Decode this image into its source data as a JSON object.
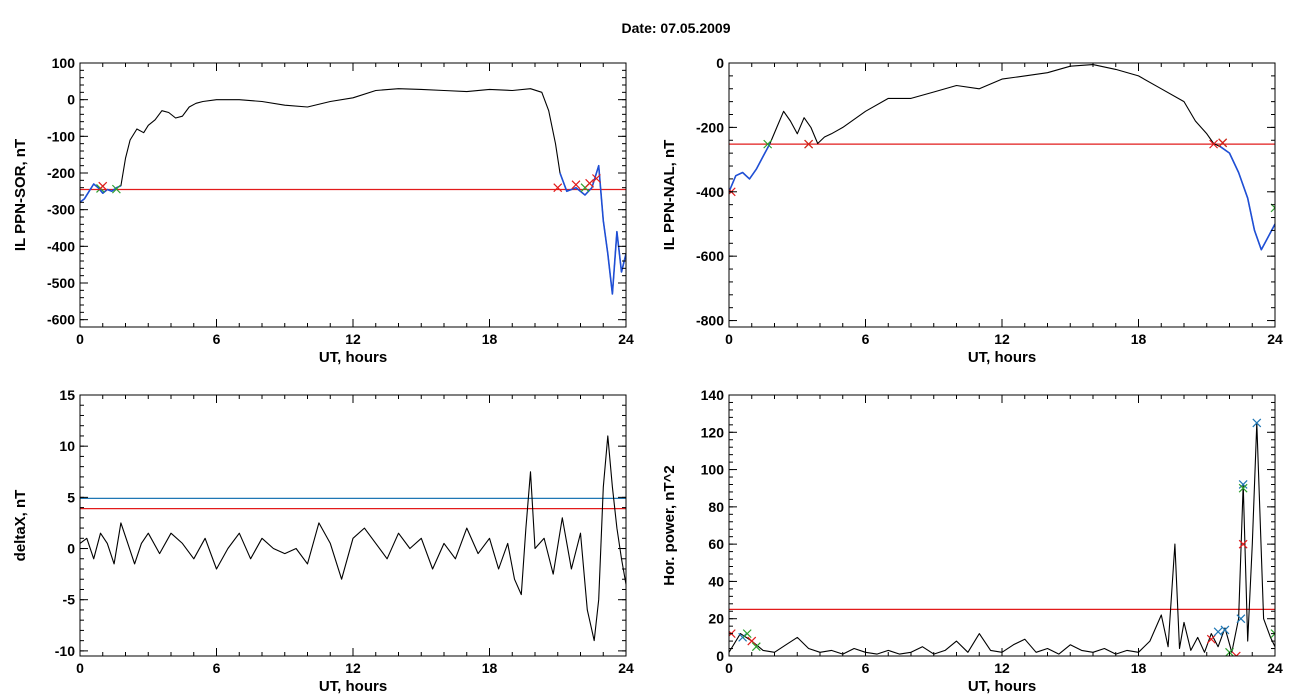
{
  "figure": {
    "title": "Date:  07.05.2009"
  },
  "chart_data": [
    {
      "id": "sor",
      "type": "line",
      "xlabel": "UT, hours",
      "ylabel": "IL PPN-SOR, nT",
      "xlim": [
        0,
        24
      ],
      "ylim": [
        -620,
        100
      ],
      "xticks": [
        0,
        6,
        12,
        18,
        24
      ],
      "yticks": [
        100,
        0,
        -100,
        -200,
        -300,
        -400,
        -500,
        -600
      ],
      "grid": false,
      "series": [
        {
          "color": "#000000",
          "x": [
            0,
            0.2,
            0.4,
            0.6,
            0.8,
            1.0,
            1.2,
            1.4,
            1.6,
            1.8,
            2.0,
            2.2,
            2.5,
            2.8,
            3.0,
            3.3,
            3.6,
            3.9,
            4.2,
            4.5,
            4.8,
            5.1,
            5.4,
            6,
            7,
            8,
            9,
            10,
            11,
            12,
            13,
            14,
            15,
            16,
            17,
            18,
            19,
            19.8,
            20.3,
            20.6,
            20.9,
            21.1,
            21.4,
            21.8,
            22.2,
            22.5,
            22.8,
            23.0,
            23.2,
            23.4,
            23.6,
            23.8,
            24.0
          ],
          "y": [
            -280,
            -270,
            -250,
            -230,
            -240,
            -255,
            -245,
            -250,
            -240,
            -235,
            -160,
            -110,
            -80,
            -90,
            -70,
            -55,
            -30,
            -35,
            -50,
            -45,
            -20,
            -10,
            -5,
            0,
            0,
            -5,
            -15,
            -20,
            -5,
            5,
            25,
            30,
            28,
            25,
            22,
            28,
            25,
            30,
            20,
            -30,
            -120,
            -200,
            -250,
            -240,
            -260,
            -240,
            -180,
            -330,
            -420,
            -530,
            -360,
            -470,
            -420
          ]
        },
        {
          "color": "#1f4fd6",
          "x": [
            0,
            0.2,
            0.4,
            0.6,
            0.8,
            1.0,
            1.2,
            1.4,
            1.6,
            1.8
          ],
          "y": [
            -280,
            -270,
            -250,
            -230,
            -240,
            -255,
            -245,
            -250,
            -240,
            -235
          ]
        },
        {
          "color": "#1f4fd6",
          "x": [
            21.1,
            21.4,
            21.8,
            22.2,
            22.5,
            22.8,
            23.0,
            23.2,
            23.4,
            23.6,
            23.8,
            24.0
          ],
          "y": [
            -200,
            -250,
            -240,
            -260,
            -240,
            -180,
            -330,
            -420,
            -530,
            -360,
            -470,
            -420
          ]
        }
      ],
      "hlines": [
        {
          "y": -245,
          "color": "#e21b1b"
        }
      ],
      "markers": [
        {
          "x": 0.9,
          "y": -242,
          "color": "#2ca02c"
        },
        {
          "x": 1.0,
          "y": -236,
          "color": "#e21b1b"
        },
        {
          "x": 1.6,
          "y": -244,
          "color": "#2ca02c"
        },
        {
          "x": 21.0,
          "y": -240,
          "color": "#e21b1b"
        },
        {
          "x": 21.8,
          "y": -232,
          "color": "#e21b1b"
        },
        {
          "x": 22.2,
          "y": -240,
          "color": "#2ca02c"
        },
        {
          "x": 22.4,
          "y": -228,
          "color": "#e21b1b"
        },
        {
          "x": 22.7,
          "y": -215,
          "color": "#e21b1b"
        }
      ]
    },
    {
      "id": "nal",
      "type": "line",
      "xlabel": "UT, hours",
      "ylabel": "IL PPN-NAL, nT",
      "xlim": [
        0,
        24
      ],
      "ylim": [
        -820,
        0
      ],
      "xticks": [
        0,
        6,
        12,
        18,
        24
      ],
      "yticks": [
        0,
        -200,
        -400,
        -600,
        -800
      ],
      "grid": false,
      "series": [
        {
          "color": "#000000",
          "x": [
            0,
            0.3,
            0.6,
            0.9,
            1.2,
            1.5,
            1.8,
            2.1,
            2.4,
            2.7,
            3.0,
            3.3,
            3.6,
            3.9,
            4.2,
            4.5,
            5,
            6,
            7,
            8,
            9,
            10,
            11,
            12,
            13,
            14,
            15,
            16,
            17,
            18,
            19,
            20,
            20.5,
            21.0,
            21.3,
            21.6,
            22.0,
            22.4,
            22.8,
            23.1,
            23.4,
            23.7,
            24.0
          ],
          "y": [
            -400,
            -350,
            -340,
            -360,
            -330,
            -290,
            -250,
            -200,
            -150,
            -180,
            -220,
            -170,
            -200,
            -250,
            -230,
            -220,
            -200,
            -150,
            -110,
            -110,
            -90,
            -70,
            -80,
            -50,
            -40,
            -30,
            -10,
            -5,
            -20,
            -40,
            -80,
            -120,
            -180,
            -220,
            -250,
            -260,
            -280,
            -340,
            -420,
            -520,
            -580,
            -540,
            -500
          ]
        },
        {
          "color": "#1f4fd6",
          "x": [
            0,
            0.3,
            0.6,
            0.9,
            1.2,
            1.5,
            1.8
          ],
          "y": [
            -400,
            -350,
            -340,
            -360,
            -330,
            -290,
            -250
          ]
        },
        {
          "color": "#1f4fd6",
          "x": [
            21.6,
            22.0,
            22.4,
            22.8,
            23.1,
            23.4,
            23.7,
            24.0
          ],
          "y": [
            -260,
            -280,
            -340,
            -420,
            -520,
            -580,
            -540,
            -500
          ]
        }
      ],
      "hlines": [
        {
          "y": -252,
          "color": "#e21b1b"
        }
      ],
      "markers": [
        {
          "x": 1.7,
          "y": -252,
          "color": "#2ca02c"
        },
        {
          "x": 3.5,
          "y": -252,
          "color": "#2ca02c"
        },
        {
          "x": 3.5,
          "y": -252,
          "color": "#e21b1b"
        },
        {
          "x": 21.3,
          "y": -252,
          "color": "#e21b1b"
        },
        {
          "x": 21.7,
          "y": -248,
          "color": "#2ca02c"
        },
        {
          "x": 21.7,
          "y": -248,
          "color": "#e21b1b"
        },
        {
          "x": 0.1,
          "y": -400,
          "color": "#e21b1b"
        },
        {
          "x": 24.0,
          "y": -450,
          "color": "#2ca02c"
        }
      ]
    },
    {
      "id": "deltax",
      "type": "line",
      "xlabel": "UT, hours",
      "ylabel": "deltaX, nT",
      "xlim": [
        0,
        24
      ],
      "ylim": [
        -10.5,
        15
      ],
      "xticks": [
        0,
        6,
        12,
        18,
        24
      ],
      "yticks": [
        15,
        10,
        5,
        0,
        -5,
        -10
      ],
      "grid": false,
      "series": [
        {
          "color": "#000000",
          "x": [
            0,
            0.3,
            0.6,
            0.9,
            1.2,
            1.5,
            1.8,
            2.1,
            2.4,
            2.7,
            3.0,
            3.5,
            4.0,
            4.5,
            5.0,
            5.5,
            6.0,
            6.5,
            7.0,
            7.5,
            8.0,
            8.5,
            9.0,
            9.5,
            10.0,
            10.5,
            11.0,
            11.5,
            12.0,
            12.5,
            13.0,
            13.5,
            14.0,
            14.5,
            15.0,
            15.5,
            16.0,
            16.5,
            17.0,
            17.5,
            18.0,
            18.4,
            18.8,
            19.1,
            19.4,
            19.6,
            19.8,
            20.0,
            20.4,
            20.8,
            21.2,
            21.6,
            22.0,
            22.3,
            22.6,
            22.8,
            23.0,
            23.2,
            23.4,
            23.6,
            23.8,
            24.0
          ],
          "y": [
            0.5,
            1,
            -1,
            1.5,
            0.5,
            -1.5,
            2.5,
            0.5,
            -1.5,
            0.5,
            1.5,
            -0.5,
            1.5,
            0.5,
            -1,
            1,
            -2,
            0,
            1.5,
            -1,
            1,
            0,
            -0.5,
            0,
            -1.5,
            2.5,
            0.5,
            -3,
            1,
            2,
            0.5,
            -1,
            1.5,
            0,
            1,
            -2,
            0.5,
            -1,
            2,
            -0.5,
            1,
            -2,
            0.5,
            -3,
            -4.5,
            2,
            7.5,
            0,
            1,
            -2.5,
            3,
            -2,
            1.5,
            -6,
            -9,
            -5,
            6,
            11,
            6,
            2,
            -1,
            -3.5
          ]
        }
      ],
      "hlines": [
        {
          "y": 4.9,
          "color": "#1f77b4"
        },
        {
          "y": 3.9,
          "color": "#e21b1b"
        }
      ],
      "markers": []
    },
    {
      "id": "power",
      "type": "line",
      "xlabel": "UT, hours",
      "ylabel": "Hor. power, nT^2",
      "xlim": [
        0,
        24
      ],
      "ylim": [
        0,
        140
      ],
      "xticks": [
        0,
        6,
        12,
        18,
        24
      ],
      "yticks": [
        140,
        120,
        100,
        80,
        60,
        40,
        20,
        0
      ],
      "grid": false,
      "series": [
        {
          "color": "#000000",
          "x": [
            0,
            0.5,
            1.0,
            1.5,
            2.0,
            2.5,
            3.0,
            3.5,
            4.0,
            4.5,
            5.0,
            5.5,
            6.0,
            6.5,
            7.0,
            7.5,
            8.0,
            8.5,
            9.0,
            9.5,
            10.0,
            10.5,
            11.0,
            11.5,
            12.0,
            12.5,
            13.0,
            13.5,
            14.0,
            14.5,
            15.0,
            15.5,
            16.0,
            16.5,
            17.0,
            17.5,
            18.0,
            18.5,
            19.0,
            19.3,
            19.6,
            19.8,
            20.0,
            20.3,
            20.6,
            20.9,
            21.2,
            21.5,
            21.8,
            22.1,
            22.4,
            22.6,
            22.8,
            23.0,
            23.2,
            23.5,
            23.8,
            24.0
          ],
          "y": [
            2,
            12,
            8,
            3,
            2,
            6,
            10,
            4,
            2,
            3,
            1,
            4,
            2,
            1,
            3,
            1,
            2,
            5,
            1,
            3,
            8,
            2,
            12,
            3,
            2,
            6,
            9,
            2,
            4,
            1,
            6,
            3,
            2,
            4,
            1,
            3,
            2,
            8,
            22,
            5,
            60,
            4,
            18,
            3,
            10,
            2,
            12,
            5,
            15,
            2,
            20,
            92,
            8,
            60,
            125,
            20,
            10,
            5
          ]
        }
      ],
      "hlines": [
        {
          "y": 25,
          "color": "#e21b1b"
        }
      ],
      "markers": [
        {
          "x": 0.1,
          "y": 12,
          "color": "#e21b1b"
        },
        {
          "x": 0.6,
          "y": 10,
          "color": "#1f77b4"
        },
        {
          "x": 0.8,
          "y": 12,
          "color": "#2ca02c"
        },
        {
          "x": 1.0,
          "y": 8,
          "color": "#e21b1b"
        },
        {
          "x": 1.2,
          "y": 5,
          "color": "#2ca02c"
        },
        {
          "x": 21.2,
          "y": 9,
          "color": "#e21b1b"
        },
        {
          "x": 21.5,
          "y": 13,
          "color": "#1f77b4"
        },
        {
          "x": 21.8,
          "y": 14,
          "color": "#1f77b4"
        },
        {
          "x": 22.0,
          "y": 2,
          "color": "#2ca02c"
        },
        {
          "x": 22.3,
          "y": 0,
          "color": "#e21b1b"
        },
        {
          "x": 22.5,
          "y": 20,
          "color": "#1f77b4"
        },
        {
          "x": 22.6,
          "y": 92,
          "color": "#1f77b4"
        },
        {
          "x": 22.6,
          "y": 90,
          "color": "#2ca02c"
        },
        {
          "x": 22.6,
          "y": 60,
          "color": "#e21b1b"
        },
        {
          "x": 23.2,
          "y": 125,
          "color": "#1f77b4"
        },
        {
          "x": 24.0,
          "y": 12,
          "color": "#2ca02c"
        }
      ]
    }
  ]
}
